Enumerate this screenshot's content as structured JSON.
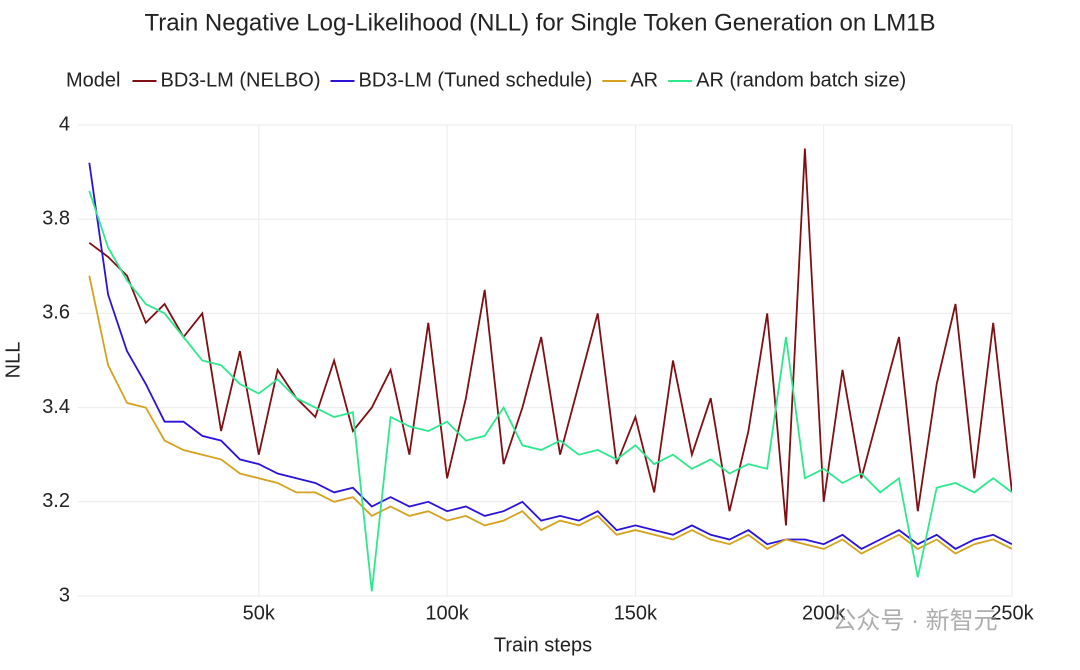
{
  "chart_data": {
    "type": "line",
    "title": "Train Negative Log-Likelihood (NLL) for Single Token Generation on LM1B",
    "legend_title": "Model",
    "x_label": "Train steps",
    "y_label": "NLL",
    "watermark": "公众号 · 新智元",
    "x": [
      5000,
      10000,
      15000,
      20000,
      25000,
      30000,
      35000,
      40000,
      45000,
      50000,
      55000,
      60000,
      65000,
      70000,
      75000,
      80000,
      85000,
      90000,
      95000,
      100000,
      105000,
      110000,
      115000,
      120000,
      125000,
      130000,
      135000,
      140000,
      145000,
      150000,
      155000,
      160000,
      165000,
      170000,
      175000,
      180000,
      185000,
      190000,
      195000,
      200000,
      205000,
      210000,
      215000,
      220000,
      225000,
      230000,
      235000,
      240000,
      245000,
      250000
    ],
    "series": [
      {
        "name": "BD3-LM (NELBO)",
        "color": "#7f0f12",
        "values": [
          3.75,
          3.72,
          3.68,
          3.58,
          3.62,
          3.55,
          3.6,
          3.35,
          3.52,
          3.3,
          3.48,
          3.42,
          3.38,
          3.5,
          3.35,
          3.4,
          3.48,
          3.3,
          3.58,
          3.25,
          3.42,
          3.65,
          3.28,
          3.4,
          3.55,
          3.3,
          3.45,
          3.6,
          3.28,
          3.38,
          3.22,
          3.5,
          3.3,
          3.42,
          3.18,
          3.35,
          3.6,
          3.15,
          3.95,
          3.2,
          3.48,
          3.25,
          3.4,
          3.55,
          3.18,
          3.45,
          3.62,
          3.25,
          3.58,
          3.22
        ]
      },
      {
        "name": "BD3-LM (Tuned schedule)",
        "color": "#2a12d8",
        "values": [
          3.92,
          3.64,
          3.52,
          3.45,
          3.37,
          3.37,
          3.34,
          3.33,
          3.29,
          3.28,
          3.26,
          3.25,
          3.24,
          3.22,
          3.23,
          3.19,
          3.21,
          3.19,
          3.2,
          3.18,
          3.19,
          3.17,
          3.18,
          3.2,
          3.16,
          3.17,
          3.16,
          3.18,
          3.14,
          3.15,
          3.14,
          3.13,
          3.15,
          3.13,
          3.12,
          3.14,
          3.11,
          3.12,
          3.12,
          3.11,
          3.13,
          3.1,
          3.12,
          3.14,
          3.11,
          3.13,
          3.1,
          3.12,
          3.13,
          3.11
        ]
      },
      {
        "name": "AR",
        "color": "#d4a21c",
        "values": [
          3.68,
          3.49,
          3.41,
          3.4,
          3.33,
          3.31,
          3.3,
          3.29,
          3.26,
          3.25,
          3.24,
          3.22,
          3.22,
          3.2,
          3.21,
          3.17,
          3.19,
          3.17,
          3.18,
          3.16,
          3.17,
          3.15,
          3.16,
          3.18,
          3.14,
          3.16,
          3.15,
          3.17,
          3.13,
          3.14,
          3.13,
          3.12,
          3.14,
          3.12,
          3.11,
          3.13,
          3.1,
          3.12,
          3.11,
          3.1,
          3.12,
          3.09,
          3.11,
          3.13,
          3.1,
          3.12,
          3.09,
          3.11,
          3.12,
          3.1
        ]
      },
      {
        "name": "AR (random batch size)",
        "color": "#2ee88e",
        "values": [
          3.86,
          3.74,
          3.67,
          3.62,
          3.6,
          3.55,
          3.5,
          3.49,
          3.45,
          3.43,
          3.46,
          3.42,
          3.4,
          3.38,
          3.39,
          3.01,
          3.38,
          3.36,
          3.35,
          3.37,
          3.33,
          3.34,
          3.4,
          3.32,
          3.31,
          3.33,
          3.3,
          3.31,
          3.29,
          3.32,
          3.28,
          3.3,
          3.27,
          3.29,
          3.26,
          3.28,
          3.27,
          3.55,
          3.25,
          3.27,
          3.24,
          3.26,
          3.22,
          3.25,
          3.04,
          3.23,
          3.24,
          3.22,
          3.25,
          3.22
        ]
      }
    ],
    "xlim": [
      2000,
      250000
    ],
    "xticks": [
      {
        "value": 50000,
        "label": "50k"
      },
      {
        "value": 100000,
        "label": "100k"
      },
      {
        "value": 150000,
        "label": "150k"
      },
      {
        "value": 200000,
        "label": "200k"
      },
      {
        "value": 250000,
        "label": "250k"
      }
    ],
    "ylim": [
      3,
      4
    ],
    "yticks": [
      3,
      3.2,
      3.4,
      3.6,
      3.8,
      4
    ],
    "grid": true
  }
}
